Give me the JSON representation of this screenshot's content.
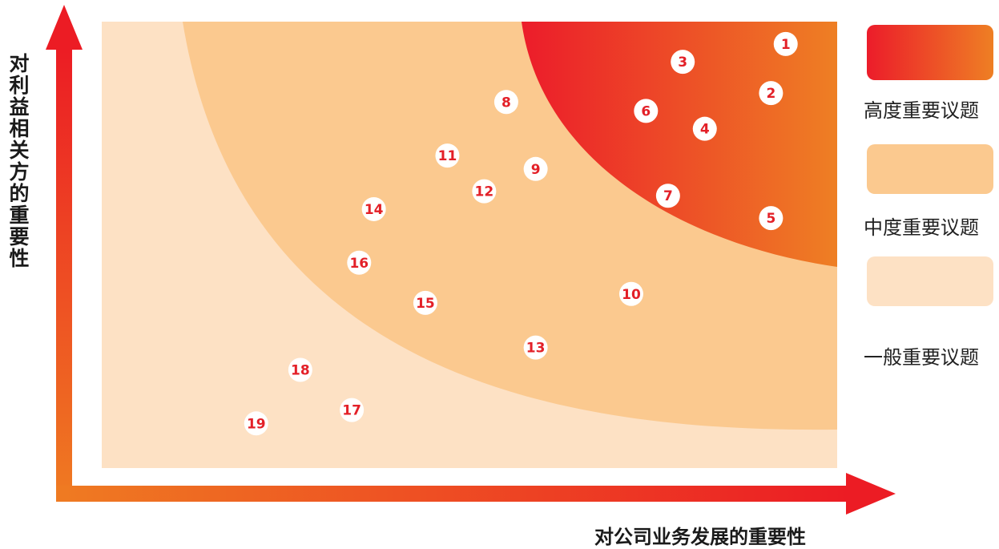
{
  "chart_data": {
    "type": "scatter",
    "title": "",
    "xlabel": "对公司业务发展的重要性",
    "ylabel": "对利益相关方的重要性",
    "points": [
      {
        "label": "1",
        "x": 9.3,
        "y": 9.5
      },
      {
        "label": "2",
        "x": 9.1,
        "y": 8.4
      },
      {
        "label": "3",
        "x": 7.9,
        "y": 9.1
      },
      {
        "label": "4",
        "x": 8.2,
        "y": 7.6
      },
      {
        "label": "5",
        "x": 9.1,
        "y": 5.6
      },
      {
        "label": "6",
        "x": 7.4,
        "y": 8.0
      },
      {
        "label": "7",
        "x": 7.7,
        "y": 6.1
      },
      {
        "label": "8",
        "x": 5.5,
        "y": 8.2
      },
      {
        "label": "9",
        "x": 5.9,
        "y": 6.7
      },
      {
        "label": "10",
        "x": 7.2,
        "y": 3.9
      },
      {
        "label": "11",
        "x": 4.7,
        "y": 7.0
      },
      {
        "label": "12",
        "x": 5.2,
        "y": 6.2
      },
      {
        "label": "13",
        "x": 5.9,
        "y": 2.7
      },
      {
        "label": "14",
        "x": 3.7,
        "y": 5.8
      },
      {
        "label": "15",
        "x": 4.4,
        "y": 3.7
      },
      {
        "label": "16",
        "x": 3.5,
        "y": 4.6
      },
      {
        "label": "17",
        "x": 3.4,
        "y": 1.3
      },
      {
        "label": "18",
        "x": 2.7,
        "y": 2.2
      },
      {
        "label": "19",
        "x": 2.1,
        "y": 1.0
      }
    ],
    "xlim": [
      0,
      10
    ],
    "ylim": [
      0,
      10
    ],
    "grid": false,
    "legend": {
      "position": "right",
      "entries": [
        {
          "label": "高度重要议题",
          "color": "#ec1c2a"
        },
        {
          "label": "中度重要议题",
          "color": "#fbc98f"
        },
        {
          "label": "一般重要议题",
          "color": "#fde1c4"
        }
      ]
    },
    "colors": {
      "axis_start": "#ef7b22",
      "axis_end": "#ec1c24",
      "high_start": "#ec1c2a",
      "high_end": "#ee7f24",
      "medium": "#fbc98f",
      "low": "#fde1c4",
      "label_text": "#e32028",
      "marker_fill": "#ffffff"
    }
  }
}
